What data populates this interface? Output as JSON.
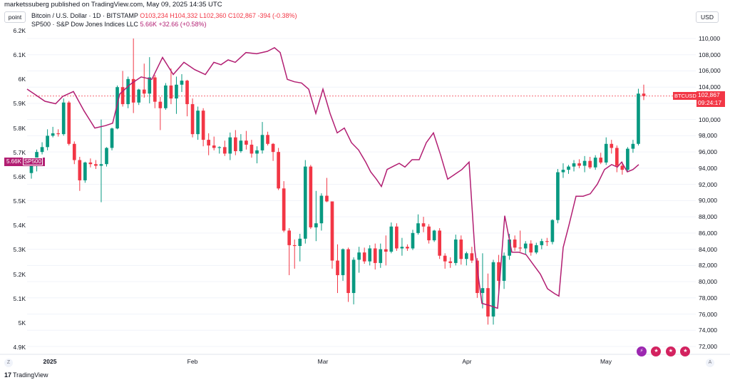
{
  "header": {
    "publisher": "marketssuberg published on TradingView.com, May 09, 2025 14:35 UTC",
    "unit_label": "point",
    "currency_label": "USD"
  },
  "legend": {
    "btc": {
      "name": "Bitcoin / U.S. Dollar · 1D · BITSTAMP",
      "o": "O103,234",
      "h": "H104,332",
      "l": "L102,360",
      "c": "C102,867",
      "change": "-394 (-0.38%)"
    },
    "sp": {
      "name": "SP500 · S&P Dow Jones Indices LLC",
      "value": "5.66K",
      "change": "+32.66 (+0.58%)"
    }
  },
  "tags": {
    "sp_value": "5.66K",
    "sp_name": "SP500",
    "btc_name": "BTCUSD",
    "btc_price": "102,867",
    "btc_countdown": "09:24:17"
  },
  "footer": {
    "z_label": "Z",
    "a_label": "A",
    "brand": "TradingView"
  },
  "colors": {
    "up": "#089981",
    "down": "#f23645",
    "sp500": "#b21e72"
  },
  "chart_data": {
    "type": "candlestick",
    "left_axis": {
      "ticks": [
        "6.2K",
        "6.1K",
        "6K",
        "5.9K",
        "5.8K",
        "5.7K",
        "5.6K",
        "5.5K",
        "5.4K",
        "5.3K",
        "5.2K",
        "5.1K",
        "5K",
        "4.9K"
      ],
      "range": [
        4880,
        6220
      ]
    },
    "right_axis": {
      "ticks": [
        "110,000",
        "108,000",
        "106,000",
        "104,000",
        "102,000",
        "100,000",
        "98,000",
        "96,000",
        "94,000",
        "92,000",
        "90,000",
        "88,000",
        "86,000",
        "84,000",
        "82,000",
        "80,000",
        "78,000",
        "76,000",
        "74,000",
        "72,000"
      ],
      "range": [
        71400,
        111400
      ]
    },
    "x_ticks": [
      {
        "label": "2025",
        "x": 70,
        "bold": true
      },
      {
        "label": "Feb",
        "x": 270,
        "bold": false
      },
      {
        "label": "Mar",
        "x": 453,
        "bold": false
      },
      {
        "label": "Apr",
        "x": 655,
        "bold": false
      },
      {
        "label": "May",
        "x": 850,
        "bold": false
      }
    ],
    "btc_candles": [
      [
        93400,
        95000,
        92700,
        94400
      ],
      [
        94400,
        96300,
        93600,
        96000
      ],
      [
        96000,
        97200,
        95700,
        96600
      ],
      [
        96600,
        98800,
        96200,
        98000
      ],
      [
        98000,
        99100,
        97800,
        98300
      ],
      [
        98300,
        98800,
        97900,
        98200
      ],
      [
        98200,
        102600,
        98000,
        102100
      ],
      [
        102100,
        102300,
        96800,
        97000
      ],
      [
        97000,
        97300,
        94500,
        95000
      ],
      [
        95000,
        95400,
        91200,
        92500
      ],
      [
        92500,
        94800,
        92200,
        94700
      ],
      [
        94700,
        95200,
        94100,
        94500
      ],
      [
        94500,
        95000,
        93900,
        94300
      ],
      [
        94300,
        100000,
        89800,
        94500
      ],
      [
        94500,
        96600,
        94200,
        96500
      ],
      [
        96500,
        99000,
        96200,
        98900
      ],
      [
        98900,
        104200,
        98800,
        104000
      ],
      [
        104000,
        106000,
        101600,
        101900
      ],
      [
        101900,
        105300,
        101400,
        105000
      ],
      [
        105000,
        110000,
        100800,
        102100
      ],
      [
        102100,
        103800,
        101800,
        103700
      ],
      [
        103700,
        106900,
        102700,
        103200
      ],
      [
        103200,
        107700,
        102000,
        105200
      ],
      [
        105200,
        105500,
        101400,
        102200
      ],
      [
        102200,
        102800,
        98700,
        101400
      ],
      [
        101400,
        104500,
        101200,
        104200
      ],
      [
        104200,
        106300,
        101900,
        102600
      ],
      [
        102600,
        105300,
        100700,
        104300
      ],
      [
        104300,
        105600,
        103400,
        104800
      ],
      [
        104800,
        104900,
        100400,
        101900
      ],
      [
        101900,
        102600,
        97800,
        98200
      ],
      [
        98200,
        101600,
        97500,
        101100
      ],
      [
        101100,
        101400,
        96700,
        97500
      ],
      [
        97500,
        98300,
        95600,
        96800
      ],
      [
        96800,
        97900,
        96200,
        96500
      ],
      [
        96500,
        96700,
        95800,
        96600
      ],
      [
        96600,
        97400,
        95500,
        95800
      ],
      [
        95800,
        98400,
        95000,
        97800
      ],
      [
        97800,
        98700,
        95600,
        96100
      ],
      [
        96100,
        98200,
        95900,
        97400
      ],
      [
        97400,
        98600,
        96300,
        96900
      ],
      [
        96900,
        97500,
        95300,
        95800
      ],
      [
        95800,
        96700,
        94600,
        96200
      ],
      [
        96200,
        99700,
        95800,
        98100
      ],
      [
        98100,
        98500,
        96800,
        97000
      ],
      [
        97000,
        97100,
        94900,
        96000
      ],
      [
        96000,
        96500,
        91300,
        91500
      ],
      [
        91500,
        92400,
        86100,
        86300
      ],
      [
        86300,
        86600,
        80800,
        84500
      ],
      [
        84500,
        85200,
        81600,
        84400
      ],
      [
        84400,
        85900,
        82500,
        85300
      ],
      [
        85300,
        95000,
        84700,
        94200
      ],
      [
        94200,
        94400,
        86500,
        86700
      ],
      [
        86700,
        91200,
        85000,
        87200
      ],
      [
        87200,
        90900,
        86300,
        90600
      ],
      [
        90600,
        92800,
        89800,
        89900
      ],
      [
        89900,
        89900,
        81600,
        82600
      ],
      [
        82600,
        84600,
        78600,
        80800
      ],
      [
        80800,
        84100,
        80100,
        84000
      ],
      [
        84000,
        84200,
        77500,
        78600
      ],
      [
        78600,
        83000,
        77200,
        82700
      ],
      [
        82700,
        84300,
        81100,
        83600
      ],
      [
        83600,
        84200,
        82200,
        82500
      ],
      [
        82500,
        84500,
        82000,
        84100
      ],
      [
        84100,
        84700,
        81500,
        82300
      ],
      [
        82300,
        84700,
        81700,
        84000
      ],
      [
        84000,
        85700,
        82000,
        83700
      ],
      [
        83700,
        87300,
        83500,
        86800
      ],
      [
        86800,
        87200,
        83800,
        84100
      ],
      [
        84100,
        85400,
        83200,
        84300
      ],
      [
        84300,
        84600,
        83800,
        84100
      ],
      [
        84100,
        86400,
        83900,
        86000
      ],
      [
        86000,
        88300,
        85800,
        87200
      ],
      [
        87200,
        88000,
        86100,
        86800
      ],
      [
        86800,
        87100,
        84700,
        85100
      ],
      [
        85100,
        86400,
        84900,
        86300
      ],
      [
        86300,
        86600,
        82800,
        83200
      ],
      [
        83200,
        83500,
        81600,
        82500
      ],
      [
        82500,
        83000,
        81700,
        82300
      ],
      [
        82300,
        85800,
        82000,
        85200
      ],
      [
        85200,
        85700,
        82100,
        82800
      ],
      [
        82800,
        83700,
        82000,
        83500
      ],
      [
        83500,
        84300,
        82300,
        82600
      ],
      [
        82600,
        82900,
        78000,
        78600
      ],
      [
        78600,
        83500,
        76700,
        79200
      ],
      [
        79200,
        81000,
        74700,
        75700
      ],
      [
        75700,
        82700,
        74700,
        82400
      ],
      [
        82400,
        83300,
        78800,
        80100
      ],
      [
        80100,
        83600,
        79100,
        83200
      ],
      [
        83200,
        85900,
        82700,
        85200
      ],
      [
        85200,
        85700,
        83800,
        84200
      ],
      [
        84200,
        86300,
        83700,
        84100
      ],
      [
        84100,
        85000,
        83300,
        84700
      ],
      [
        84700,
        85100,
        83200,
        83600
      ],
      [
        83600,
        84800,
        83400,
        84500
      ],
      [
        84500,
        85300,
        84000,
        85000
      ],
      [
        85000,
        85400,
        84400,
        84900
      ],
      [
        84900,
        87700,
        84600,
        87600
      ],
      [
        87600,
        93900,
        87200,
        93500
      ],
      [
        93500,
        94600,
        92800,
        93800
      ],
      [
        93800,
        94400,
        93300,
        94200
      ],
      [
        94200,
        95000,
        93600,
        94600
      ],
      [
        94600,
        95100,
        94000,
        94300
      ],
      [
        94300,
        95500,
        93500,
        94900
      ],
      [
        94900,
        95400,
        93900,
        94100
      ],
      [
        94100,
        95600,
        93800,
        95300
      ],
      [
        95300,
        95900,
        94500,
        94700
      ],
      [
        94700,
        97800,
        94400,
        97000
      ],
      [
        97000,
        97500,
        95800,
        96500
      ],
      [
        96500,
        96800,
        93500,
        94300
      ],
      [
        94300,
        94800,
        93200,
        93800
      ],
      [
        93800,
        96600,
        93600,
        96400
      ],
      [
        96400,
        97500,
        95900,
        97000
      ],
      [
        97000,
        103800,
        96800,
        103200
      ],
      [
        103200,
        104300,
        102400,
        102900
      ]
    ],
    "sp500_line": [
      [
        38,
        5960
      ],
      [
        48,
        5940
      ],
      [
        63,
        5910
      ],
      [
        78,
        5900
      ],
      [
        88,
        5930
      ],
      [
        103,
        5950
      ],
      [
        118,
        5870
      ],
      [
        133,
        5800
      ],
      [
        148,
        5810
      ],
      [
        158,
        5820
      ],
      [
        168,
        5940
      ],
      [
        183,
        5980
      ],
      [
        198,
        6010
      ],
      [
        213,
        6000
      ],
      [
        228,
        6090
      ],
      [
        243,
        6020
      ],
      [
        258,
        6070
      ],
      [
        273,
        6040
      ],
      [
        288,
        6020
      ],
      [
        300,
        6070
      ],
      [
        310,
        6060
      ],
      [
        320,
        6080
      ],
      [
        330,
        6070
      ],
      [
        345,
        6110
      ],
      [
        360,
        6105
      ],
      [
        375,
        6115
      ],
      [
        385,
        6130
      ],
      [
        393,
        6110
      ],
      [
        403,
        6000
      ],
      [
        413,
        5990
      ],
      [
        423,
        5985
      ],
      [
        433,
        5960
      ],
      [
        443,
        5860
      ],
      [
        453,
        5960
      ],
      [
        463,
        5860
      ],
      [
        473,
        5780
      ],
      [
        483,
        5800
      ],
      [
        493,
        5740
      ],
      [
        503,
        5710
      ],
      [
        513,
        5660
      ],
      [
        520,
        5620
      ],
      [
        528,
        5590
      ],
      [
        535,
        5560
      ],
      [
        543,
        5630
      ],
      [
        553,
        5645
      ],
      [
        560,
        5655
      ],
      [
        568,
        5640
      ],
      [
        578,
        5670
      ],
      [
        588,
        5670
      ],
      [
        598,
        5740
      ],
      [
        608,
        5780
      ],
      [
        618,
        5690
      ],
      [
        628,
        5590
      ],
      [
        638,
        5610
      ],
      [
        648,
        5630
      ],
      [
        658,
        5660
      ],
      [
        666,
        5300
      ],
      [
        676,
        5080
      ],
      [
        688,
        5070
      ],
      [
        698,
        5060
      ],
      [
        708,
        5440
      ],
      [
        718,
        5290
      ],
      [
        728,
        5290
      ],
      [
        738,
        5280
      ],
      [
        748,
        5240
      ],
      [
        758,
        5200
      ],
      [
        768,
        5140
      ],
      [
        778,
        5120
      ],
      [
        784,
        5110
      ],
      [
        790,
        5310
      ],
      [
        798,
        5400
      ],
      [
        808,
        5520
      ],
      [
        818,
        5520
      ],
      [
        828,
        5530
      ],
      [
        838,
        5570
      ],
      [
        848,
        5630
      ],
      [
        858,
        5650
      ],
      [
        866,
        5640
      ],
      [
        872,
        5660
      ],
      [
        880,
        5620
      ],
      [
        888,
        5630
      ],
      [
        896,
        5650
      ]
    ]
  }
}
